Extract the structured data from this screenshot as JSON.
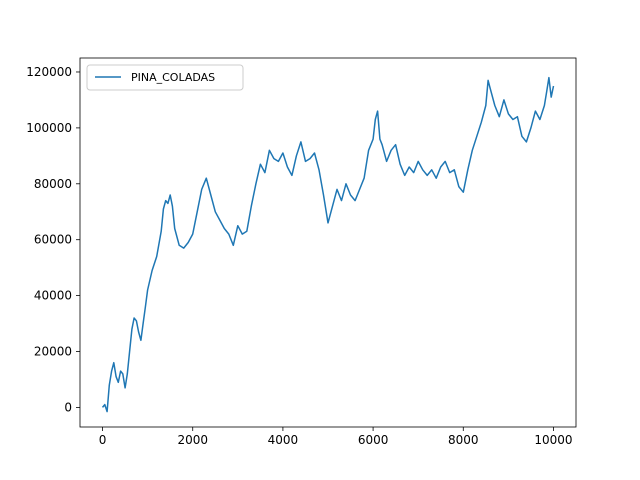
{
  "chart_data": {
    "type": "line",
    "title": "",
    "xlabel": "",
    "ylabel": "",
    "xlim": [
      -500,
      10500
    ],
    "ylim": [
      -7000,
      125000
    ],
    "xticks": [
      0,
      2000,
      4000,
      6000,
      8000,
      10000
    ],
    "yticks": [
      0,
      20000,
      40000,
      60000,
      80000,
      100000,
      120000
    ],
    "xtick_labels": [
      "0",
      "2000",
      "4000",
      "6000",
      "8000",
      "10000"
    ],
    "ytick_labels": [
      "0",
      "20000",
      "40000",
      "60000",
      "80000",
      "100000",
      "120000"
    ],
    "grid": false,
    "legend": {
      "position": "top-left",
      "entries": [
        "PINA_COLADAS"
      ]
    },
    "series": [
      {
        "name": "PINA_COLADAS",
        "color": "#1f77b4",
        "x": [
          0,
          50,
          100,
          150,
          200,
          250,
          300,
          350,
          400,
          450,
          500,
          550,
          600,
          650,
          700,
          750,
          800,
          850,
          900,
          950,
          1000,
          1100,
          1200,
          1300,
          1350,
          1400,
          1450,
          1500,
          1550,
          1600,
          1700,
          1800,
          1900,
          2000,
          2100,
          2200,
          2300,
          2400,
          2500,
          2600,
          2700,
          2800,
          2900,
          3000,
          3100,
          3200,
          3300,
          3400,
          3500,
          3600,
          3700,
          3800,
          3900,
          4000,
          4100,
          4200,
          4300,
          4400,
          4500,
          4600,
          4700,
          4800,
          4900,
          5000,
          5100,
          5200,
          5300,
          5400,
          5500,
          5600,
          5700,
          5800,
          5900,
          6000,
          6050,
          6100,
          6150,
          6200,
          6300,
          6400,
          6500,
          6600,
          6700,
          6800,
          6900,
          7000,
          7100,
          7200,
          7300,
          7400,
          7500,
          7600,
          7700,
          7800,
          7900,
          8000,
          8100,
          8200,
          8300,
          8400,
          8500,
          8550,
          8600,
          8700,
          8800,
          8900,
          9000,
          9100,
          9200,
          9300,
          9400,
          9500,
          9600,
          9700,
          9800,
          9850,
          9900,
          9950,
          10000
        ],
        "y": [
          0,
          1000,
          -1500,
          8000,
          13000,
          16000,
          11000,
          9000,
          13000,
          12000,
          7000,
          12000,
          20000,
          28000,
          32000,
          31000,
          27000,
          24000,
          30000,
          36000,
          42000,
          49000,
          54000,
          63000,
          71000,
          74000,
          73000,
          76000,
          72000,
          64000,
          58000,
          57000,
          59000,
          62000,
          70000,
          78000,
          82000,
          76000,
          70000,
          67000,
          64000,
          62000,
          58000,
          65000,
          62000,
          63000,
          72000,
          80000,
          87000,
          84000,
          92000,
          89000,
          88000,
          91000,
          86000,
          83000,
          90000,
          95000,
          88000,
          89000,
          91000,
          85000,
          76000,
          66000,
          72000,
          78000,
          74000,
          80000,
          76000,
          74000,
          78000,
          82000,
          92000,
          96000,
          103000,
          106000,
          96000,
          94000,
          88000,
          92000,
          94000,
          87000,
          83000,
          86000,
          84000,
          88000,
          85000,
          83000,
          85000,
          82000,
          86000,
          88000,
          84000,
          85000,
          79000,
          77000,
          85000,
          92000,
          97000,
          102000,
          108000,
          117000,
          114000,
          108000,
          104000,
          110000,
          105000,
          103000,
          104000,
          97000,
          95000,
          100000,
          106000,
          103000,
          108000,
          113000,
          118000,
          111000,
          115000
        ]
      }
    ]
  }
}
